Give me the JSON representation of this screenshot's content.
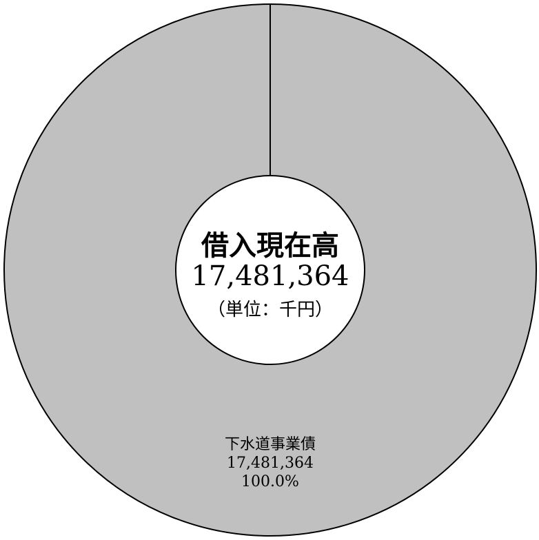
{
  "chart_data": {
    "type": "pie",
    "style": "donut",
    "categories": [
      "下水道事業債"
    ],
    "values": [
      17481364
    ],
    "value_labels": [
      "17,481,364"
    ],
    "percent_labels": [
      "100.0%"
    ],
    "center": {
      "title": "借入現在高",
      "total": "17,481,364",
      "unit": "（単位：千円）"
    },
    "colors": {
      "slice": "#c0c0c0",
      "outline": "#000000",
      "hole": "#ffffff"
    },
    "legend": "none"
  }
}
